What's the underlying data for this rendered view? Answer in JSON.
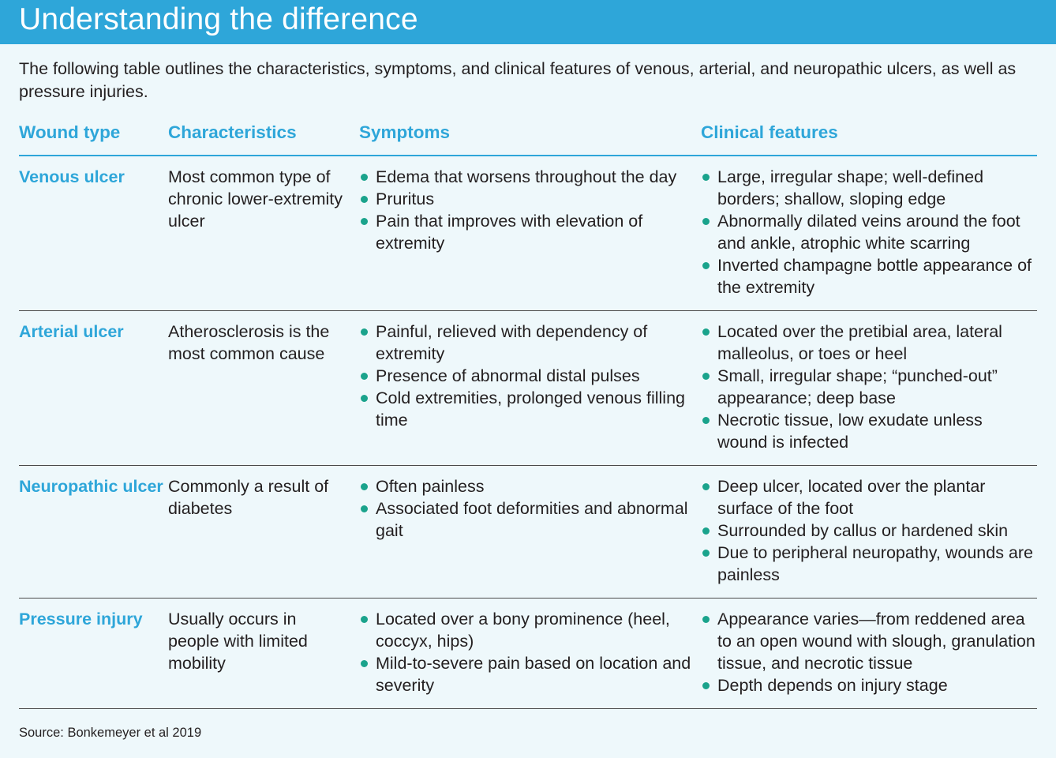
{
  "title": "Understanding the difference",
  "intro": "The following table outlines the characteristics, symptoms, and clinical features of venous, arterial, and neuropathic ulcers, as well as pressure injuries.",
  "columns": [
    "Wound type",
    "Characteristics",
    "Symptoms",
    "Clinical features"
  ],
  "rows": [
    {
      "wound_type": "Venous ulcer",
      "characteristics": "Most common type of chronic lower-extremity ulcer",
      "symptoms": [
        "Edema that worsens throughout the day",
        "Pruritus",
        "Pain that improves with elevation of extremity"
      ],
      "clinical_features": [
        "Large, irregular shape; well-defined borders; shallow, sloping edge",
        "Abnormally dilated veins around the foot and ankle, atrophic white scarring",
        "Inverted champagne bottle appearance of the extremity"
      ]
    },
    {
      "wound_type": "Arterial ulcer",
      "characteristics": "Atherosclerosis is the most common cause",
      "symptoms": [
        "Painful, relieved with dependency of extremity",
        "Presence of abnormal distal pulses",
        "Cold extremities, prolonged venous filling time"
      ],
      "clinical_features": [
        "Located over the pretibial area, lateral malleolus, or toes or heel",
        "Small, irregular shape; “punched-out” appearance; deep base",
        "Necrotic tissue, low exudate unless wound is infected"
      ]
    },
    {
      "wound_type": "Neuropathic ulcer",
      "characteristics": "Commonly a result of diabetes",
      "symptoms": [
        "Often painless",
        "Associated foot deformities and abnormal gait"
      ],
      "clinical_features": [
        "Deep ulcer, located over the plantar surface of the foot",
        "Surrounded by callus or hardened skin",
        "Due to peripheral neuropathy, wounds are painless"
      ]
    },
    {
      "wound_type": "Pressure injury",
      "characteristics": "Usually occurs in people with limited mobility",
      "symptoms": [
        "Located over a bony prominence (heel, coccyx, hips)",
        "Mild-to-severe pain based on location and severity"
      ],
      "clinical_features": [
        "Appearance varies—from reddened area to an open wound with slough, granulation tissue, and necrotic tissue",
        "Depth depends on injury stage"
      ]
    }
  ],
  "source": "Source: Bonkemeyer et al 2019",
  "colors": {
    "accent": "#2ea6d9",
    "bullet": "#1aa38c",
    "background": "#eef8fb"
  }
}
